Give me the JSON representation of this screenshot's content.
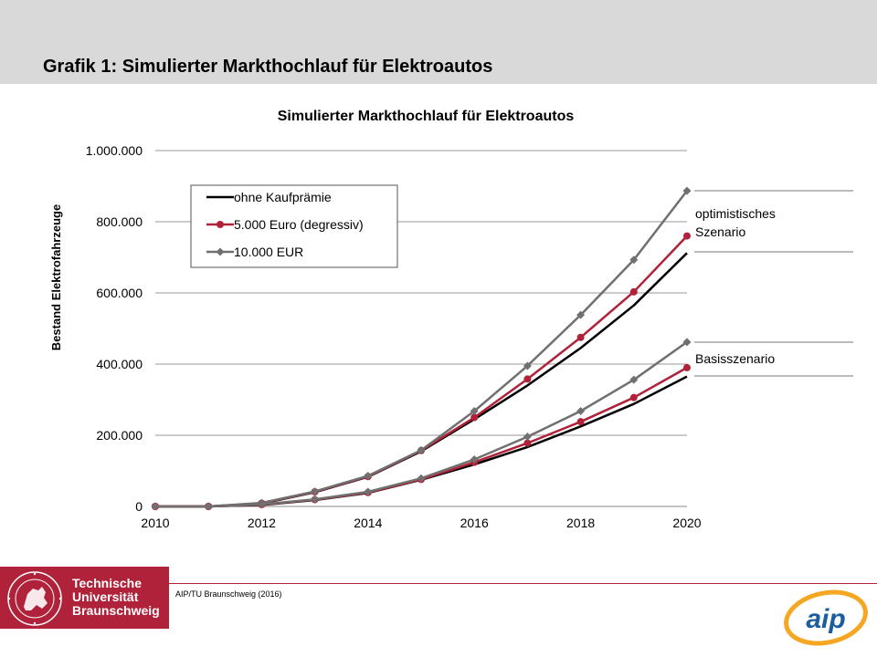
{
  "slide": {
    "title": "Grafik 1: Simulierter Markthochlauf für Elektroautos"
  },
  "chart_data": {
    "type": "line",
    "title": "Simulierter Markthochlauf für Elektroautos",
    "xlabel": "",
    "ylabel": "Bestand Elektrofahrzeuge",
    "xlim": [
      2010,
      2020
    ],
    "ylim": [
      0,
      1000000
    ],
    "x_ticks": [
      "2010",
      "2012",
      "2014",
      "2016",
      "2018",
      "2020"
    ],
    "y_ticks": [
      "0",
      "200.000",
      "400.000",
      "600.000",
      "800.000",
      "1.000.000"
    ],
    "grid": "horizontal",
    "legend_position": "top-left",
    "x": [
      2010,
      2011,
      2012,
      2013,
      2014,
      2015,
      2016,
      2017,
      2018,
      2019,
      2020
    ],
    "series": [
      {
        "name": "ohne Kaufprämie",
        "group": "optimistisches Szenario",
        "color": "#000000",
        "marker": "none",
        "values": [
          0,
          0,
          8000,
          40000,
          83000,
          155000,
          245000,
          340000,
          445000,
          565000,
          712000
        ]
      },
      {
        "name": "5.000 Euro (degressiv)",
        "group": "optimistisches Szenario",
        "color": "#b0223a",
        "marker": "circle",
        "values": [
          0,
          0,
          9000,
          41000,
          84000,
          157000,
          250000,
          358000,
          475000,
          603000,
          760000
        ]
      },
      {
        "name": "10.000 EUR",
        "group": "optimistisches Szenario",
        "color": "#707070",
        "marker": "diamond",
        "values": [
          0,
          0,
          10000,
          42000,
          86000,
          158000,
          268000,
          395000,
          538000,
          693000,
          887000
        ]
      },
      {
        "name": "ohne Kaufprämie",
        "group": "Basisszenario",
        "color": "#000000",
        "marker": "none",
        "values": [
          0,
          0,
          4000,
          18000,
          38000,
          75000,
          118000,
          167000,
          225000,
          288000,
          365000
        ]
      },
      {
        "name": "5.000 Euro (degressiv)",
        "group": "Basisszenario",
        "color": "#b0223a",
        "marker": "circle",
        "values": [
          0,
          0,
          5000,
          19000,
          39000,
          76000,
          124000,
          178000,
          238000,
          306000,
          390000
        ]
      },
      {
        "name": "10.000 EUR",
        "group": "Basisszenario",
        "color": "#707070",
        "marker": "diamond",
        "values": [
          0,
          0,
          6000,
          20000,
          41000,
          79000,
          132000,
          196000,
          268000,
          356000,
          462000
        ]
      }
    ],
    "legend": [
      "ohne Kaufprämie",
      "5.000 Euro (degressiv)",
      "10.000 EUR"
    ],
    "annotations": [
      {
        "text": "optimistisches Szenario",
        "line1": "optimistisches",
        "line2": "Szenario"
      },
      {
        "text": "Basisszenario"
      }
    ]
  },
  "footer": {
    "university_line1": "Technische",
    "university_line2": "Universität",
    "university_line3": "Braunschweig",
    "source": "AIP/TU Braunschweig (2016)",
    "aip_logo_text": "aip"
  },
  "colors": {
    "header_band": "#d9d9d9",
    "tu_red": "#b0223a",
    "grid": "#999999",
    "aip_blue": "#1b5e9e",
    "aip_orange": "#f5a623"
  }
}
